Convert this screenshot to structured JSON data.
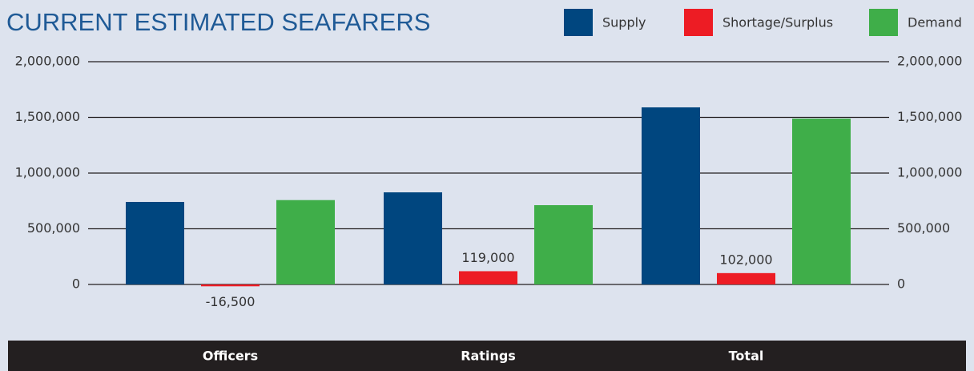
{
  "chart_data": {
    "type": "bar",
    "title": "CURRENT ESTIMATED SEAFARERS",
    "categories": [
      "Officers",
      "Ratings",
      "Total"
    ],
    "series": [
      {
        "name": "Supply",
        "color": "#00467f",
        "values": [
          741000,
          827000,
          1590000
        ]
      },
      {
        "name": "Shortage/Surplus",
        "color": "#ed1c24",
        "values": [
          -16500,
          119000,
          102000
        ],
        "value_labels": [
          "-16,500",
          "119,000",
          "102,000"
        ]
      },
      {
        "name": "Demand",
        "color": "#3fae49",
        "values": [
          757500,
          712000,
          1489000
        ]
      }
    ],
    "ylim": [
      0,
      2000000
    ],
    "yticks": [
      0,
      {
        "value": 500000,
        "label": "500,000"
      },
      {
        "value": 1000000,
        "label": "1,000,000"
      },
      {
        "value": 1500000,
        "label": "1,500,000"
      },
      {
        "value": 2000000,
        "label": "2,000,000"
      }
    ],
    "y2lim": [
      0,
      2000000
    ],
    "y2ticks": [
      0,
      {
        "value": 500000,
        "label": "500,000"
      },
      {
        "value": 1000000,
        "label": "1,000,000"
      },
      {
        "value": 1500000,
        "label": "1,500,000"
      },
      {
        "value": 2000000,
        "label": "2,000,000"
      }
    ],
    "grid": true,
    "legend": "top-right"
  }
}
